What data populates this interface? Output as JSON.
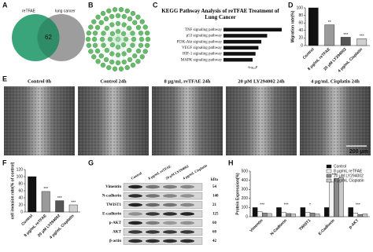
{
  "panel_letters": [
    "A",
    "B",
    "C",
    "D",
    "E",
    "F",
    "G",
    "H"
  ],
  "venn": {
    "labels": [
      "reTFAE",
      "lung cancer"
    ],
    "overlap": "62"
  },
  "chart_data": [
    {
      "type": "barh",
      "title": "KEGG Pathway Analysis of reTFAE Treatment of Lung Cancer",
      "categories": [
        "TNF signaling pathway",
        "p53 signaling pathway",
        "PI3K-Akt signaling pathway",
        "VEGF signaling pathway",
        "HIF-1 signaling pathway",
        "MAPK signaling pathway"
      ],
      "values": [
        10,
        7.5,
        6.5,
        6,
        5.5,
        5
      ],
      "color": "#111111",
      "xlim": [
        0,
        10
      ],
      "xlabel": "-log₁₀P"
    },
    {
      "type": "bar",
      "ylabel": "Migration rate(%)",
      "categories": [
        "Control",
        "8 μg/mL reTFAE",
        "20 μM LY294002",
        "4 μg/mL Cisplatin"
      ],
      "values": [
        100,
        55,
        22,
        18
      ],
      "colors": [
        "#111111",
        "#9a9a9a",
        "#555555",
        "#cfcfcf"
      ],
      "annotations": [
        null,
        "**",
        "***",
        "***"
      ],
      "ylim": [
        0,
        100
      ],
      "yticks": [
        0,
        20,
        40,
        60,
        80,
        100
      ]
    },
    {
      "type": "bar",
      "ylabel": "cell invasion rate(% of control)",
      "categories": [
        "Control",
        "8 μg/mL reTFAE",
        "20 μM LY294002",
        "4 μg/mL Cisplatin"
      ],
      "values": [
        100,
        58,
        32,
        20
      ],
      "colors": [
        "#111111",
        "#9a9a9a",
        "#555555",
        "#cfcfcf"
      ],
      "annotations": [
        null,
        "***",
        "***",
        "***"
      ],
      "ylim": [
        0,
        120
      ],
      "yticks": [
        0,
        20,
        40,
        60,
        80,
        100,
        120
      ]
    },
    {
      "type": "bar",
      "ylabel": "Protein Expression(%)",
      "categories": [
        "Vimentin",
        "N-Cadherin",
        "TWIST1",
        "E-Cadherin",
        "p-AKT"
      ],
      "series": [
        {
          "name": "Control",
          "color": "#111111",
          "values": [
            100,
            100,
            100,
            100,
            100
          ]
        },
        {
          "name": "8 μg/mL reTFAE",
          "color": "#f2f2f2",
          "values": [
            55,
            45,
            50,
            380,
            40
          ]
        },
        {
          "name": "20 μM LY294002",
          "color": "#888888",
          "values": [
            40,
            35,
            40,
            420,
            25
          ]
        },
        {
          "name": "4 μg/mL Cisplatin",
          "color": "#c8c8c8",
          "values": [
            35,
            30,
            30,
            430,
            30
          ]
        }
      ],
      "annotations": [
        "***",
        "***",
        "*",
        "***",
        "***"
      ],
      "ylim": [
        0,
        500
      ],
      "yticks": [
        0,
        100,
        200,
        300,
        400,
        500
      ]
    }
  ],
  "wound_healing": {
    "titles": [
      "Control  0h",
      "Control  24h",
      "8 μg/mL reTFAE  24h",
      "20 μM LY294002  24h",
      "4 μg/mL Cisplatin  24h"
    ],
    "scale_bar": "200 μm"
  },
  "western_blot": {
    "columns": [
      "Control",
      "8 μg/mL reTFAE",
      "20 μM LY294002",
      "4 μg/mL Cisplatin"
    ],
    "unit_header": "kDa",
    "rows": [
      {
        "protein": "Vimentin",
        "kda": "54"
      },
      {
        "protein": "N-cadherin",
        "kda": "140"
      },
      {
        "protein": "TWIST1",
        "kda": "21"
      },
      {
        "protein": "E-cadherin",
        "kda": "125"
      },
      {
        "protein": "p-AKT",
        "kda": "60"
      },
      {
        "protein": "AKT",
        "kda": "60"
      },
      {
        "protein": "β-actin",
        "kda": "42"
      }
    ]
  }
}
